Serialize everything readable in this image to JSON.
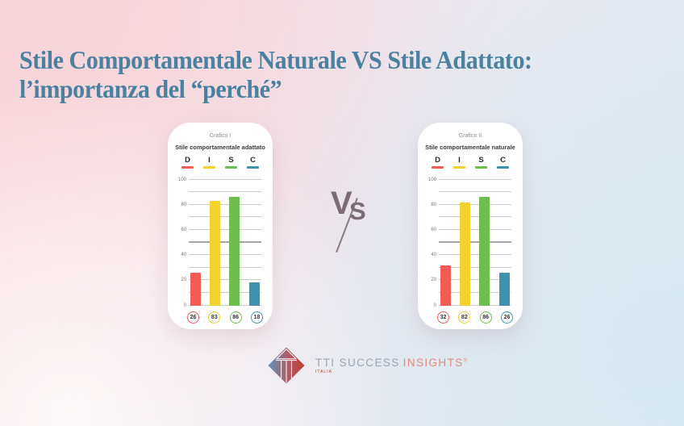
{
  "title": {
    "line1": "Stile Comportamentale Naturale VS Stile Adattato:",
    "line2": "l’importanza del “perché”"
  },
  "vs": {
    "v": "V",
    "s": "S"
  },
  "colors": {
    "title": "#4a81a1",
    "vs": "#7c6b77",
    "d_red": "#f25c54",
    "i_yellow": "#f3d230",
    "s_green": "#6cbf4c",
    "c_blue": "#3e92ae",
    "grid": "#cccccc",
    "grid_mid": "#a6a6a6"
  },
  "chart_data": [
    {
      "type": "bar",
      "title": "Grafico I",
      "subtitle": "Stile comportamentale adattato",
      "categories": [
        "D",
        "I",
        "S",
        "C"
      ],
      "values": [
        26,
        83,
        86,
        18
      ],
      "colors": [
        "#f25c54",
        "#f3d230",
        "#6cbf4c",
        "#3e92ae"
      ],
      "ylim": [
        0,
        100
      ],
      "grid_step": 10,
      "label_step": 20,
      "grid": true,
      "value_badges": [
        26,
        83,
        86,
        18
      ]
    },
    {
      "type": "bar",
      "title": "Grafico II",
      "subtitle": "Stile comportamentale naturale",
      "categories": [
        "D",
        "I",
        "S",
        "C"
      ],
      "values": [
        32,
        82,
        86,
        26
      ],
      "colors": [
        "#f25c54",
        "#f3d230",
        "#6cbf4c",
        "#3e92ae"
      ],
      "ylim": [
        0,
        100
      ],
      "grid_step": 10,
      "label_step": 20,
      "grid": true,
      "value_badges": [
        32,
        82,
        86,
        26
      ]
    }
  ],
  "logo": {
    "brand_part1": "TTI SUCCESS",
    "brand_part2": "INSIGHTS",
    "mark": "®",
    "region": "ITALIA"
  }
}
